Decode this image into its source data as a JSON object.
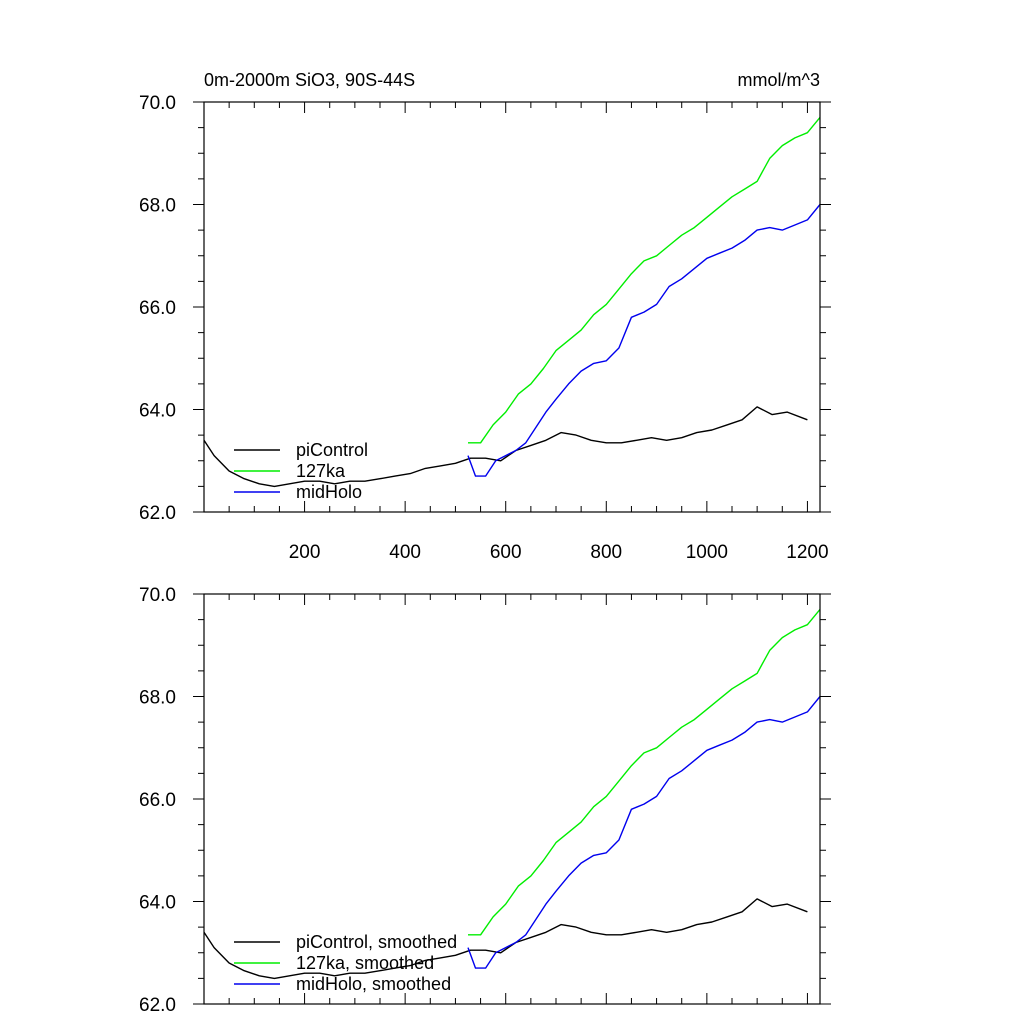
{
  "chart_data": [
    {
      "type": "line",
      "title": "0m-2000m SiO3, 90S-44S",
      "units": "mmol/m^3",
      "xlim": [
        0,
        1225
      ],
      "ylim": [
        62.0,
        70.0
      ],
      "xticks": [
        200,
        400,
        600,
        800,
        1000,
        1200
      ],
      "xtick_labels": [
        "200",
        "400",
        "600",
        "800",
        "1000",
        "1200"
      ],
      "yticks": [
        62.0,
        64.0,
        66.0,
        68.0,
        70.0
      ],
      "ytick_labels": [
        "62.0",
        "64.0",
        "66.0",
        "68.0",
        "70.0"
      ],
      "legend": "bottom-left",
      "series": [
        {
          "name": "piControl",
          "color": "#000000",
          "x": [
            0,
            20,
            50,
            80,
            110,
            140,
            170,
            200,
            230,
            260,
            290,
            320,
            350,
            380,
            410,
            440,
            470,
            500,
            530,
            560,
            590,
            620,
            650,
            680,
            710,
            740,
            770,
            800,
            830,
            860,
            890,
            920,
            950,
            980,
            1010,
            1040,
            1070,
            1100,
            1130,
            1160,
            1200
          ],
          "y": [
            63.4,
            63.1,
            62.8,
            62.65,
            62.55,
            62.5,
            62.55,
            62.6,
            62.6,
            62.55,
            62.6,
            62.6,
            62.65,
            62.7,
            62.75,
            62.85,
            62.9,
            62.95,
            63.05,
            63.05,
            63.0,
            63.2,
            63.3,
            63.4,
            63.55,
            63.5,
            63.4,
            63.35,
            63.35,
            63.4,
            63.45,
            63.4,
            63.45,
            63.55,
            63.6,
            63.7,
            63.8,
            64.05,
            63.9,
            63.95,
            63.8
          ]
        },
        {
          "name": "127ka",
          "color": "#00ee00",
          "x": [
            525,
            550,
            575,
            600,
            625,
            650,
            675,
            700,
            725,
            750,
            775,
            800,
            825,
            850,
            875,
            900,
            925,
            950,
            975,
            1000,
            1025,
            1050,
            1075,
            1100,
            1125,
            1150,
            1175,
            1200,
            1225
          ],
          "y": [
            63.35,
            63.35,
            63.7,
            63.95,
            64.3,
            64.5,
            64.8,
            65.15,
            65.35,
            65.55,
            65.85,
            66.05,
            66.35,
            66.65,
            66.9,
            67.0,
            67.2,
            67.4,
            67.55,
            67.75,
            67.95,
            68.15,
            68.3,
            68.45,
            68.9,
            69.15,
            69.3,
            69.4,
            69.7
          ]
        },
        {
          "name": "midHolo",
          "color": "#0000ee",
          "x": [
            525,
            540,
            560,
            580,
            600,
            620,
            640,
            660,
            680,
            700,
            725,
            750,
            775,
            800,
            825,
            850,
            875,
            900,
            925,
            950,
            975,
            1000,
            1025,
            1050,
            1075,
            1100,
            1125,
            1150,
            1175,
            1200,
            1225
          ],
          "y": [
            63.1,
            62.7,
            62.7,
            63.0,
            63.1,
            63.2,
            63.35,
            63.65,
            63.95,
            64.2,
            64.5,
            64.75,
            64.9,
            64.95,
            65.2,
            65.8,
            65.9,
            66.05,
            66.4,
            66.55,
            66.75,
            66.95,
            67.05,
            67.15,
            67.3,
            67.5,
            67.55,
            67.5,
            67.6,
            67.7,
            68.0
          ]
        }
      ]
    },
    {
      "type": "line",
      "xlim": [
        0,
        1225
      ],
      "ylim": [
        62.0,
        70.0
      ],
      "xticks": [
        200,
        400,
        600,
        800,
        1000,
        1200
      ],
      "yticks": [
        62.0,
        64.0,
        66.0,
        68.0,
        70.0
      ],
      "ytick_labels": [
        "62.0",
        "64.0",
        "66.0",
        "68.0",
        "70.0"
      ],
      "legend": "bottom-left",
      "series": [
        {
          "name": "piControl, smoothed",
          "color": "#000000",
          "x": [
            0,
            20,
            50,
            80,
            110,
            140,
            170,
            200,
            230,
            260,
            290,
            320,
            350,
            380,
            410,
            440,
            470,
            500,
            530,
            560,
            590,
            620,
            650,
            680,
            710,
            740,
            770,
            800,
            830,
            860,
            890,
            920,
            950,
            980,
            1010,
            1040,
            1070,
            1100,
            1130,
            1160,
            1200
          ],
          "y": [
            63.4,
            63.1,
            62.8,
            62.65,
            62.55,
            62.5,
            62.55,
            62.6,
            62.6,
            62.55,
            62.6,
            62.6,
            62.65,
            62.7,
            62.75,
            62.85,
            62.9,
            62.95,
            63.05,
            63.05,
            63.0,
            63.2,
            63.3,
            63.4,
            63.55,
            63.5,
            63.4,
            63.35,
            63.35,
            63.4,
            63.45,
            63.4,
            63.45,
            63.55,
            63.6,
            63.7,
            63.8,
            64.05,
            63.9,
            63.95,
            63.8
          ]
        },
        {
          "name": "127ka, smoothed",
          "color": "#00ee00",
          "x": [
            525,
            550,
            575,
            600,
            625,
            650,
            675,
            700,
            725,
            750,
            775,
            800,
            825,
            850,
            875,
            900,
            925,
            950,
            975,
            1000,
            1025,
            1050,
            1075,
            1100,
            1125,
            1150,
            1175,
            1200,
            1225
          ],
          "y": [
            63.35,
            63.35,
            63.7,
            63.95,
            64.3,
            64.5,
            64.8,
            65.15,
            65.35,
            65.55,
            65.85,
            66.05,
            66.35,
            66.65,
            66.9,
            67.0,
            67.2,
            67.4,
            67.55,
            67.75,
            67.95,
            68.15,
            68.3,
            68.45,
            68.9,
            69.15,
            69.3,
            69.4,
            69.7
          ]
        },
        {
          "name": "midHolo, smoothed",
          "color": "#0000ee",
          "x": [
            525,
            540,
            560,
            580,
            600,
            620,
            640,
            660,
            680,
            700,
            725,
            750,
            775,
            800,
            825,
            850,
            875,
            900,
            925,
            950,
            975,
            1000,
            1025,
            1050,
            1075,
            1100,
            1125,
            1150,
            1175,
            1200,
            1225
          ],
          "y": [
            63.1,
            62.7,
            62.7,
            63.0,
            63.1,
            63.2,
            63.35,
            63.65,
            63.95,
            64.2,
            64.5,
            64.75,
            64.9,
            64.95,
            65.2,
            65.8,
            65.9,
            66.05,
            66.4,
            66.55,
            66.75,
            66.95,
            67.05,
            67.15,
            67.3,
            67.5,
            67.55,
            67.5,
            67.6,
            67.7,
            68.0
          ]
        }
      ]
    }
  ]
}
